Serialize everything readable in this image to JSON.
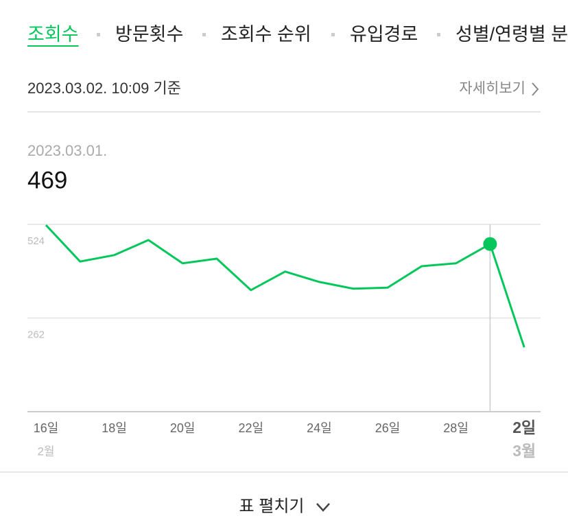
{
  "tabs": [
    "조회수",
    "방문횟수",
    "조회수 순위",
    "유입경로",
    "성별/연령별 분포"
  ],
  "active_tab": 0,
  "timestamp": "2023.03.02. 10:09 기준",
  "detail_link": "자세히보기",
  "selected_date": "2023.03.01.",
  "selected_value": 469,
  "chart": {
    "type": "line",
    "categories": [
      "16일",
      null,
      "18일",
      null,
      "20일",
      null,
      "22일",
      null,
      "24일",
      null,
      "26일",
      null,
      "28일",
      null,
      "2일"
    ],
    "months": [
      "2월",
      null,
      null,
      null,
      null,
      null,
      null,
      null,
      null,
      null,
      null,
      null,
      null,
      null,
      "3월"
    ],
    "values": [
      522,
      420,
      438,
      480,
      415,
      428,
      340,
      392,
      363,
      344,
      347,
      407,
      415,
      469,
      180
    ],
    "color": "#03c75a",
    "ylim": [
      0,
      524
    ],
    "yticks": [
      262,
      524
    ],
    "grid": true,
    "selected_index": 13
  },
  "expand_button": "표 펼치기"
}
